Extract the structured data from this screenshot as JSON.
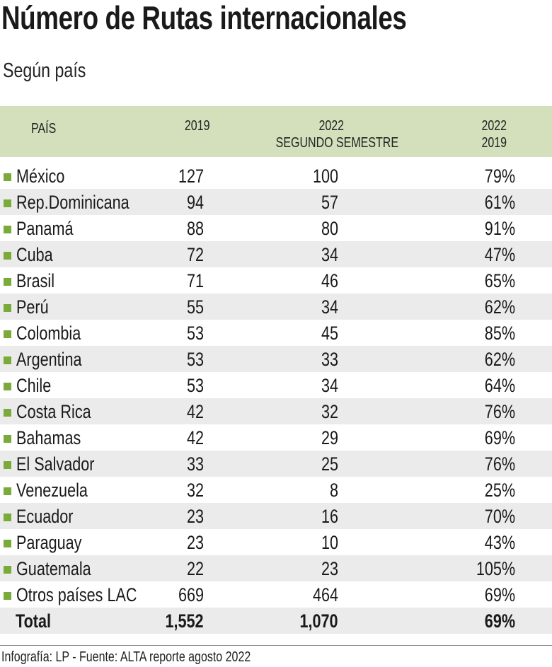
{
  "title": "Número de Rutas internacionales",
  "subtitle": "Según país",
  "chart_data": {
    "type": "table",
    "columns": [
      "PAÍS",
      "2019",
      "2022 SEGUNDO SEMESTRE",
      "2022 2019"
    ],
    "header": {
      "pais": "PAÍS",
      "y2019": "2019",
      "y2022_line1": "2022",
      "y2022_line2": "SEGUNDO SEMESTRE",
      "ratio_line1": "2022",
      "ratio_line2": "2019"
    },
    "rows": [
      {
        "country": "México",
        "y2019": "127",
        "y2022": "100",
        "ratio": "79%"
      },
      {
        "country": "Rep.Dominicana",
        "y2019": "94",
        "y2022": "57",
        "ratio": "61%"
      },
      {
        "country": "Panamá",
        "y2019": "88",
        "y2022": "80",
        "ratio": "91%"
      },
      {
        "country": "Cuba",
        "y2019": "72",
        "y2022": "34",
        "ratio": "47%"
      },
      {
        "country": "Brasil",
        "y2019": "71",
        "y2022": "46",
        "ratio": "65%"
      },
      {
        "country": "Perú",
        "y2019": "55",
        "y2022": "34",
        "ratio": "62%"
      },
      {
        "country": "Colombia",
        "y2019": "53",
        "y2022": "45",
        "ratio": "85%"
      },
      {
        "country": "Argentina",
        "y2019": "53",
        "y2022": "33",
        "ratio": "62%"
      },
      {
        "country": "Chile",
        "y2019": "53",
        "y2022": "34",
        "ratio": "64%"
      },
      {
        "country": "Costa Rica",
        "y2019": "42",
        "y2022": "32",
        "ratio": "76%"
      },
      {
        "country": "Bahamas",
        "y2019": "42",
        "y2022": "29",
        "ratio": "69%"
      },
      {
        "country": "El Salvador",
        "y2019": "33",
        "y2022": "25",
        "ratio": "76%"
      },
      {
        "country": "Venezuela",
        "y2019": "32",
        "y2022": "8",
        "ratio": "25%"
      },
      {
        "country": "Ecuador",
        "y2019": "23",
        "y2022": "16",
        "ratio": "70%"
      },
      {
        "country": "Paraguay",
        "y2019": "23",
        "y2022": "10",
        "ratio": "43%"
      },
      {
        "country": "Guatemala",
        "y2019": "22",
        "y2022": "23",
        "ratio": "105%"
      },
      {
        "country": "Otros países LAC",
        "y2019": "669",
        "y2022": "464",
        "ratio": "69%"
      }
    ],
    "total": {
      "country": "Total",
      "y2019": "1,552",
      "y2022": "1,070",
      "ratio": "69%"
    },
    "colors": {
      "header_bg": "#d3e0bb",
      "bullet": "#7aab3a",
      "alt_row": "#ebebeb"
    }
  },
  "footer": "Infografía: LP - Fuente: ALTA reporte agosto 2022"
}
